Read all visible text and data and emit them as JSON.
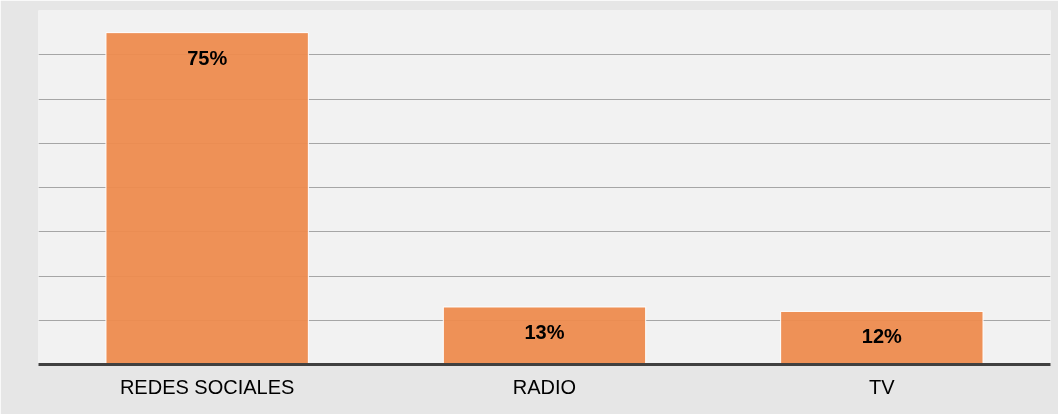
{
  "chart_data": {
    "type": "bar",
    "categories": [
      "REDES SOCIALES",
      "RADIO",
      "TV"
    ],
    "values": [
      75,
      13,
      12
    ],
    "value_labels": [
      "75%",
      "13%",
      "12%"
    ],
    "color": "#ed8b4e",
    "ylim": [
      0,
      80
    ],
    "yticks": [
      {
        "value": 0,
        "label": null
      },
      {
        "value": 10,
        "label": null
      },
      {
        "value": 20,
        "label": null
      },
      {
        "value": 30,
        "label": null
      },
      {
        "value": 40,
        "label": null
      },
      {
        "value": 50,
        "label": null
      },
      {
        "value": 60,
        "label": null
      },
      {
        "value": 70,
        "label": null
      },
      {
        "value": 80,
        "label": null
      }
    ],
    "grid": "y",
    "tick_labels": "x"
  }
}
